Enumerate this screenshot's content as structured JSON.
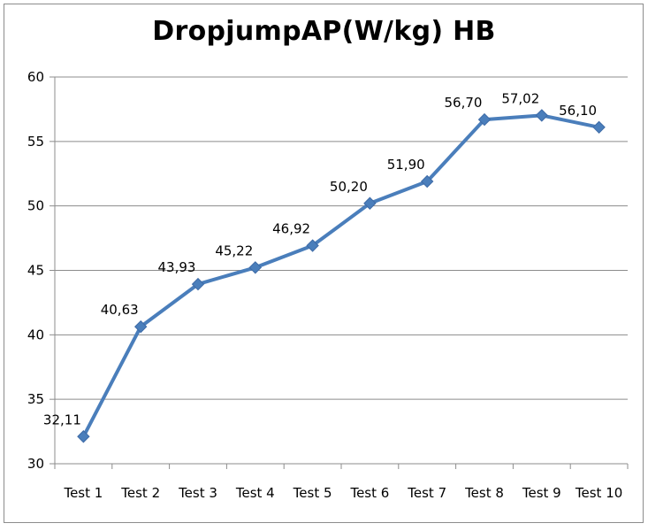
{
  "chart_data": {
    "type": "line",
    "title": "DropjumpAP(W/kg) HB",
    "xlabel": "",
    "ylabel": "",
    "categories": [
      "Test 1",
      "Test 2",
      "Test 3",
      "Test 4",
      "Test 5",
      "Test 6",
      "Test 7",
      "Test 8",
      "Test 9",
      "Test 10"
    ],
    "series": [
      {
        "values": [
          32.11,
          40.63,
          43.93,
          45.22,
          46.92,
          50.2,
          51.9,
          56.7,
          57.02,
          56.1
        ],
        "data_labels": [
          "32,11",
          "40,63",
          "43,93",
          "45,22",
          "46,92",
          "50,20",
          "51,90",
          "56,70",
          "57,02",
          "56,10"
        ],
        "color": "#4a7ebb",
        "marker": "diamond"
      }
    ],
    "ylim": [
      30,
      60
    ],
    "yticks": [
      30,
      35,
      40,
      45,
      50,
      55,
      60
    ],
    "grid": true,
    "legend": "none"
  }
}
